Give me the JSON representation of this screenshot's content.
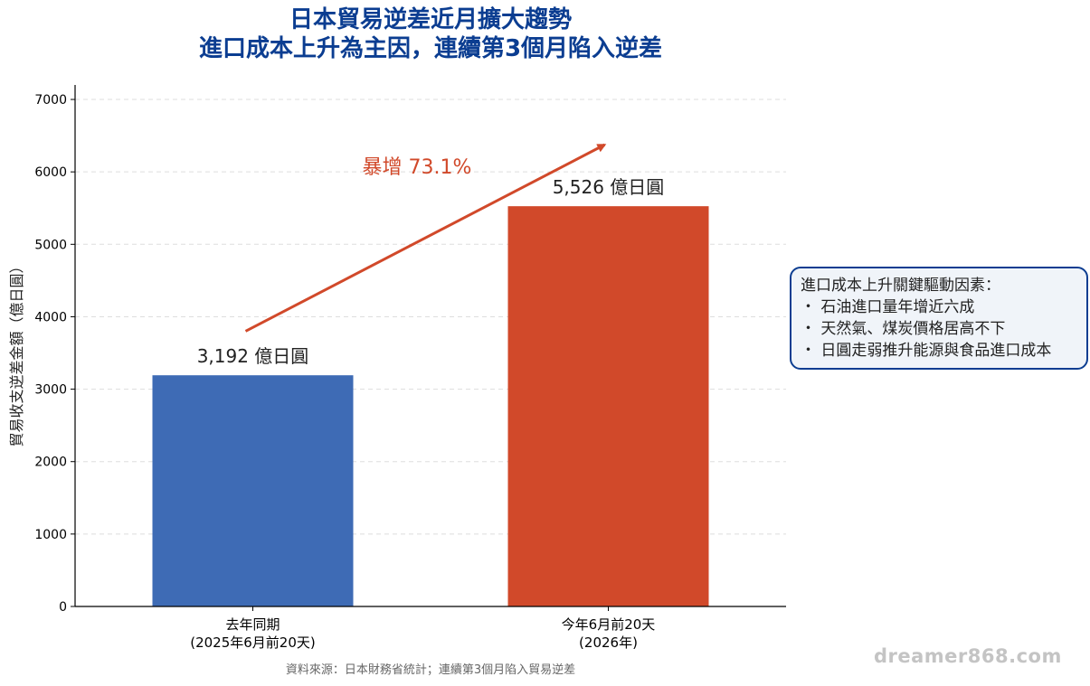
{
  "colors": {
    "title": "#0b3d91",
    "bar_last_year": "#3e6bb5",
    "bar_this_year": "#d1492a",
    "arrow": "#d1492a",
    "grid": "#dddddd"
  },
  "header": {
    "title_line1": "日本貿易逆差近月擴大趨勢",
    "title_line2": "進口成本上升為主因，連續第3個月陷入逆差"
  },
  "annotation": {
    "arrow_label": "暴增 73.1%"
  },
  "infobox": {
    "heading": "進口成本上升關鍵驅動因素：",
    "items": [
      "石油進口量年增近六成",
      "天然氣、煤炭價格居高不下",
      "日圓走弱推升能源與食品進口成本"
    ]
  },
  "footer": {
    "source": "資料來源：日本財務省統計；連續第3個月陷入貿易逆差",
    "watermark": "dreamer868.com"
  },
  "chart_data": {
    "type": "bar",
    "title": "日本貿易逆差近月擴大趨勢\n進口成本上升為主因，連續第3個月陷入逆差",
    "ylabel": "貿易收支逆差金額（億日圓）",
    "xlabel": "",
    "ylim": [
      0,
      7200
    ],
    "yticks": [
      0,
      1000,
      2000,
      3000,
      4000,
      5000,
      6000,
      7000
    ],
    "grid": "horizontal dashed",
    "categories": [
      [
        "去年同期",
        "(2025年6月前20天)"
      ],
      [
        "今年6月前20天",
        "(2026年)"
      ]
    ],
    "values": [
      3192,
      5526
    ],
    "value_labels": [
      "3,192 億日圓",
      "5,526 億日圓"
    ],
    "bar_colors": [
      "#3e6bb5",
      "#d1492a"
    ],
    "annotations": [
      {
        "text": "暴增 73.1%",
        "type": "arrow",
        "from": [
          0,
          3900
        ],
        "to": [
          1,
          6200
        ]
      }
    ]
  }
}
